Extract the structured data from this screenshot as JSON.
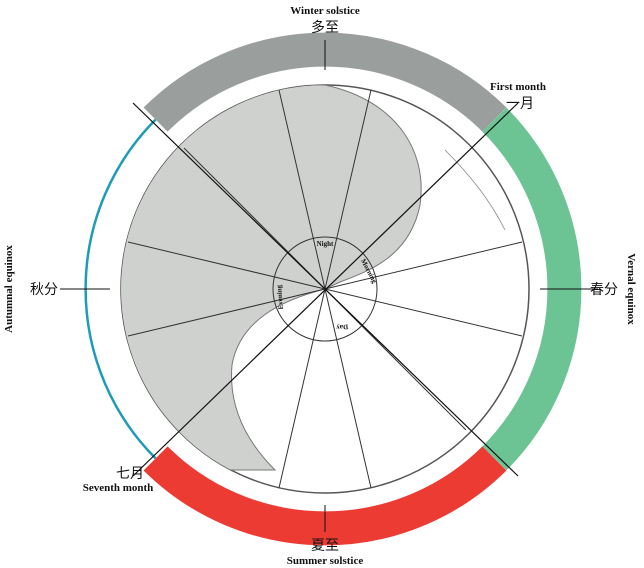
{
  "labels": {
    "winter_solstice_en": "Winter solstice",
    "winter_solstice_zh": "多至",
    "summer_solstice_en": "Summer solstice",
    "summer_solstice_zh": "夏至",
    "vernal_equinox_en": "Vernal equinox",
    "vernal_equinox_zh": "春分",
    "autumnal_equinox_en": "Autumnal equinox",
    "autumnal_equinox_zh": "秋分",
    "first_month_en": "First month",
    "first_month_zh": "一月",
    "seventh_month_en": "Seventh month",
    "seventh_month_zh": "七月"
  },
  "inner_circle": {
    "night": "Night",
    "morning": "Morning",
    "day": "Day",
    "evening": "Evening"
  },
  "colors": {
    "winter_arc": "#9a9e9c",
    "spring_arc": "#6cc495",
    "summer_arc": "#ec3b33",
    "autumn_arc": "#1e9bb7",
    "shade": "#cfd1cf"
  }
}
